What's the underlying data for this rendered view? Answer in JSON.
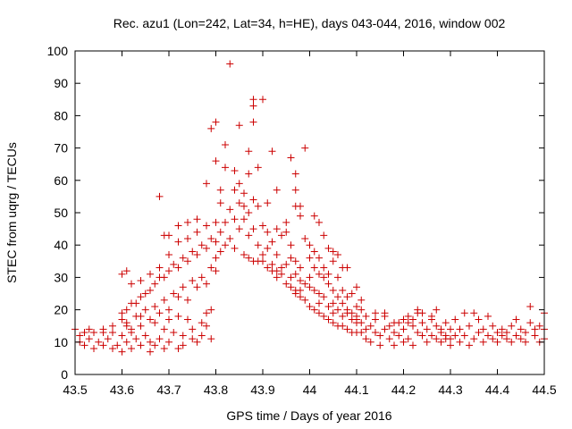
{
  "chart_data": {
    "type": "scatter",
    "title": "Rec. azu1 (Lon=242, Lat=34, h=HE), days 043-044, 2016, window 002",
    "xlabel": "GPS time / Days of year 2016",
    "ylabel": "STEC from uqrg / TECUs",
    "xlim": [
      43.5,
      44.5
    ],
    "ylim": [
      0,
      100
    ],
    "xticks": [
      "43.5",
      "43.6",
      "43.7",
      "43.8",
      "43.9",
      "44",
      "44.1",
      "44.2",
      "44.3",
      "44.4",
      "44.5"
    ],
    "yticks": [
      "0",
      "10",
      "20",
      "30",
      "40",
      "50",
      "60",
      "70",
      "80",
      "90",
      "100"
    ],
    "grid": false,
    "legend": "none",
    "marker": "plus",
    "color": "#cc0000",
    "points": [
      [
        43.5,
        14
      ],
      [
        43.51,
        12
      ],
      [
        43.51,
        10
      ],
      [
        43.52,
        9
      ],
      [
        43.52,
        13
      ],
      [
        43.53,
        11
      ],
      [
        43.54,
        8
      ],
      [
        43.54,
        13
      ],
      [
        43.55,
        10
      ],
      [
        43.56,
        9
      ],
      [
        43.56,
        14
      ],
      [
        43.57,
        11
      ],
      [
        43.58,
        8
      ],
      [
        43.58,
        13
      ],
      [
        43.59,
        9
      ],
      [
        43.6,
        12
      ],
      [
        43.6,
        7
      ],
      [
        43.61,
        15
      ],
      [
        43.61,
        10
      ],
      [
        43.62,
        8
      ],
      [
        43.62,
        13
      ],
      [
        43.63,
        11
      ],
      [
        43.64,
        9
      ],
      [
        43.64,
        15
      ],
      [
        43.65,
        12
      ],
      [
        43.66,
        10
      ],
      [
        43.66,
        7
      ],
      [
        43.67,
        16
      ],
      [
        43.67,
        9
      ],
      [
        43.68,
        11
      ],
      [
        43.69,
        8
      ],
      [
        43.69,
        14
      ],
      [
        43.7,
        10
      ],
      [
        43.7,
        17
      ],
      [
        43.71,
        13
      ],
      [
        43.72,
        8
      ],
      [
        43.72,
        18
      ],
      [
        43.73,
        12
      ],
      [
        43.73,
        9
      ],
      [
        43.74,
        17
      ],
      [
        43.75,
        11
      ],
      [
        43.75,
        14
      ],
      [
        43.76,
        10
      ],
      [
        43.77,
        16
      ],
      [
        43.77,
        12
      ],
      [
        43.78,
        19
      ],
      [
        43.78,
        15
      ],
      [
        43.79,
        20
      ],
      [
        43.79,
        11
      ],
      [
        43.53,
        14
      ],
      [
        43.56,
        13
      ],
      [
        43.58,
        15
      ],
      [
        43.6,
        17
      ],
      [
        43.61,
        16
      ],
      [
        43.62,
        14
      ],
      [
        43.63,
        18
      ],
      [
        43.64,
        18
      ],
      [
        43.65,
        20
      ],
      [
        43.66,
        17
      ],
      [
        43.67,
        21
      ],
      [
        43.68,
        19
      ],
      [
        43.69,
        23
      ],
      [
        43.7,
        20
      ],
      [
        43.71,
        25
      ],
      [
        43.72,
        24
      ],
      [
        43.73,
        27
      ],
      [
        43.74,
        23
      ],
      [
        43.75,
        29
      ],
      [
        43.76,
        27
      ],
      [
        43.77,
        30
      ],
      [
        43.78,
        28
      ],
      [
        43.79,
        33
      ],
      [
        43.8,
        32
      ],
      [
        43.6,
        19
      ],
      [
        43.61,
        20
      ],
      [
        43.62,
        22
      ],
      [
        43.63,
        22
      ],
      [
        43.64,
        24
      ],
      [
        43.65,
        25
      ],
      [
        43.66,
        26
      ],
      [
        43.67,
        28
      ],
      [
        43.68,
        30
      ],
      [
        43.69,
        30
      ],
      [
        43.7,
        32
      ],
      [
        43.71,
        34
      ],
      [
        43.72,
        33
      ],
      [
        43.73,
        36
      ],
      [
        43.74,
        35
      ],
      [
        43.75,
        38
      ],
      [
        43.76,
        37
      ],
      [
        43.77,
        40
      ],
      [
        43.78,
        39
      ],
      [
        43.79,
        42
      ],
      [
        43.8,
        41
      ],
      [
        43.6,
        31
      ],
      [
        43.61,
        32
      ],
      [
        43.62,
        28
      ],
      [
        43.64,
        29
      ],
      [
        43.66,
        31
      ],
      [
        43.68,
        33
      ],
      [
        43.7,
        37
      ],
      [
        43.72,
        41
      ],
      [
        43.74,
        42
      ],
      [
        43.76,
        44
      ],
      [
        43.78,
        46
      ],
      [
        43.8,
        47
      ],
      [
        43.68,
        55
      ],
      [
        43.69,
        43
      ],
      [
        43.7,
        43
      ],
      [
        43.72,
        46
      ],
      [
        43.74,
        47
      ],
      [
        43.76,
        48
      ],
      [
        43.78,
        59
      ],
      [
        43.79,
        76
      ],
      [
        43.8,
        78
      ],
      [
        43.8,
        66
      ],
      [
        43.81,
        57
      ],
      [
        43.81,
        53
      ],
      [
        43.82,
        71
      ],
      [
        43.82,
        64
      ],
      [
        43.83,
        96
      ],
      [
        43.84,
        63
      ],
      [
        43.84,
        57
      ],
      [
        43.85,
        77
      ],
      [
        43.85,
        59
      ],
      [
        43.86,
        56
      ],
      [
        43.86,
        52
      ],
      [
        43.87,
        69
      ],
      [
        43.87,
        62
      ],
      [
        43.88,
        85
      ],
      [
        43.88,
        83
      ],
      [
        43.88,
        78
      ],
      [
        43.89,
        64
      ],
      [
        43.9,
        85
      ],
      [
        43.91,
        53
      ],
      [
        43.92,
        69
      ],
      [
        43.93,
        57
      ],
      [
        43.8,
        36
      ],
      [
        43.81,
        38
      ],
      [
        43.81,
        44
      ],
      [
        43.82,
        40
      ],
      [
        43.82,
        47
      ],
      [
        43.83,
        42
      ],
      [
        43.83,
        51
      ],
      [
        43.84,
        48
      ],
      [
        43.84,
        39
      ],
      [
        43.85,
        53
      ],
      [
        43.85,
        45
      ],
      [
        43.86,
        37
      ],
      [
        43.86,
        48
      ],
      [
        43.87,
        50
      ],
      [
        43.87,
        43
      ],
      [
        43.88,
        54
      ],
      [
        43.88,
        45
      ],
      [
        43.89,
        40
      ],
      [
        43.89,
        52
      ],
      [
        43.9,
        46
      ],
      [
        43.9,
        35
      ],
      [
        43.91,
        44
      ],
      [
        43.91,
        39
      ],
      [
        43.92,
        41
      ],
      [
        43.92,
        34
      ],
      [
        43.93,
        45
      ],
      [
        43.93,
        37
      ],
      [
        43.87,
        36
      ],
      [
        43.88,
        35
      ],
      [
        43.89,
        35
      ],
      [
        43.9,
        37
      ],
      [
        43.91,
        33
      ],
      [
        43.92,
        32
      ],
      [
        43.93,
        30
      ],
      [
        43.94,
        31
      ],
      [
        43.95,
        28
      ],
      [
        43.96,
        27
      ],
      [
        43.97,
        26
      ],
      [
        43.98,
        24
      ],
      [
        43.99,
        23
      ],
      [
        44.0,
        21
      ],
      [
        44.01,
        20
      ],
      [
        44.02,
        19
      ],
      [
        44.03,
        18
      ],
      [
        44.04,
        17
      ],
      [
        44.05,
        16
      ],
      [
        44.06,
        15
      ],
      [
        44.07,
        15
      ],
      [
        44.08,
        14
      ],
      [
        44.09,
        13
      ],
      [
        44.1,
        13
      ],
      [
        43.93,
        32
      ],
      [
        43.94,
        33
      ],
      [
        43.95,
        34
      ],
      [
        43.96,
        36
      ],
      [
        43.96,
        30
      ],
      [
        43.97,
        31
      ],
      [
        43.97,
        25
      ],
      [
        43.98,
        29
      ],
      [
        43.98,
        26
      ],
      [
        43.99,
        28
      ],
      [
        44.0,
        27
      ],
      [
        44.0,
        30
      ],
      [
        44.01,
        26
      ],
      [
        44.02,
        25
      ],
      [
        44.02,
        22
      ],
      [
        44.03,
        24
      ],
      [
        44.04,
        21
      ],
      [
        44.05,
        22
      ],
      [
        44.05,
        19
      ],
      [
        44.06,
        20
      ],
      [
        44.07,
        18
      ],
      [
        44.08,
        19
      ],
      [
        44.09,
        17
      ],
      [
        44.1,
        16
      ],
      [
        44.1,
        18
      ],
      [
        43.94,
        43
      ],
      [
        43.95,
        44
      ],
      [
        43.95,
        47
      ],
      [
        43.96,
        40
      ],
      [
        43.96,
        67
      ],
      [
        43.97,
        52
      ],
      [
        43.97,
        57
      ],
      [
        43.98,
        52
      ],
      [
        43.98,
        49
      ],
      [
        43.99,
        70
      ],
      [
        43.99,
        42
      ],
      [
        44.0,
        40
      ],
      [
        44.01,
        49
      ],
      [
        44.01,
        38
      ],
      [
        44.02,
        47
      ],
      [
        44.02,
        36
      ],
      [
        44.03,
        43
      ],
      [
        44.03,
        33
      ],
      [
        44.04,
        39
      ],
      [
        44.04,
        31
      ],
      [
        44.05,
        38
      ],
      [
        44.05,
        35
      ],
      [
        44.06,
        30
      ],
      [
        44.06,
        37
      ],
      [
        44.07,
        33
      ],
      [
        44.07,
        26
      ],
      [
        44.08,
        33
      ],
      [
        44.08,
        24
      ],
      [
        44.09,
        25
      ],
      [
        44.1,
        27
      ],
      [
        44.1,
        21
      ],
      [
        44.11,
        23
      ],
      [
        44.11,
        20
      ],
      [
        43.97,
        62
      ],
      [
        43.97,
        35
      ],
      [
        43.98,
        33
      ],
      [
        44.0,
        36
      ],
      [
        44.01,
        33
      ],
      [
        44.02,
        31
      ],
      [
        44.03,
        30
      ],
      [
        44.04,
        28
      ],
      [
        44.05,
        26
      ],
      [
        44.06,
        24
      ],
      [
        44.07,
        22
      ],
      [
        44.08,
        20
      ],
      [
        44.09,
        19
      ],
      [
        44.1,
        17
      ],
      [
        44.11,
        16
      ],
      [
        44.11,
        13
      ],
      [
        44.12,
        14
      ],
      [
        44.12,
        11
      ],
      [
        44.13,
        15
      ],
      [
        44.13,
        10
      ],
      [
        44.14,
        13
      ],
      [
        44.14,
        17
      ],
      [
        44.15,
        12
      ],
      [
        44.15,
        9
      ],
      [
        44.16,
        14
      ],
      [
        44.16,
        18
      ],
      [
        44.17,
        11
      ],
      [
        44.17,
        15
      ],
      [
        44.18,
        13
      ],
      [
        44.18,
        9
      ],
      [
        44.19,
        16
      ],
      [
        44.19,
        12
      ],
      [
        44.2,
        14
      ],
      [
        44.2,
        10
      ],
      [
        44.21,
        18
      ],
      [
        44.21,
        11
      ],
      [
        44.22,
        15
      ],
      [
        44.22,
        9
      ],
      [
        44.23,
        13
      ],
      [
        44.23,
        19
      ],
      [
        44.24,
        12
      ],
      [
        44.24,
        16
      ],
      [
        44.25,
        10
      ],
      [
        44.25,
        14
      ],
      [
        44.26,
        12
      ],
      [
        44.26,
        18
      ],
      [
        44.27,
        11
      ],
      [
        44.27,
        15
      ],
      [
        44.28,
        13
      ],
      [
        44.28,
        10
      ],
      [
        44.29,
        12
      ],
      [
        44.29,
        16
      ],
      [
        44.3,
        11
      ],
      [
        44.3,
        14
      ],
      [
        44.12,
        18
      ],
      [
        44.14,
        19
      ],
      [
        44.16,
        19
      ],
      [
        44.18,
        16
      ],
      [
        44.2,
        17
      ],
      [
        44.21,
        16
      ],
      [
        44.22,
        17
      ],
      [
        44.23,
        20
      ],
      [
        44.24,
        19
      ],
      [
        44.26,
        17
      ],
      [
        44.27,
        20
      ],
      [
        44.28,
        14
      ],
      [
        44.29,
        11
      ],
      [
        44.3,
        9
      ],
      [
        44.31,
        12
      ],
      [
        44.31,
        17
      ],
      [
        44.32,
        10
      ],
      [
        44.32,
        14
      ],
      [
        44.33,
        19
      ],
      [
        44.33,
        12
      ],
      [
        44.34,
        9
      ],
      [
        44.34,
        15
      ],
      [
        44.35,
        11
      ],
      [
        44.35,
        19
      ],
      [
        44.36,
        13
      ],
      [
        44.36,
        17
      ],
      [
        44.37,
        10
      ],
      [
        44.37,
        14
      ],
      [
        44.38,
        12
      ],
      [
        44.38,
        18
      ],
      [
        44.39,
        11
      ],
      [
        44.39,
        15
      ],
      [
        44.4,
        13
      ],
      [
        44.4,
        10
      ],
      [
        44.41,
        12
      ],
      [
        44.41,
        14
      ],
      [
        44.42,
        11
      ],
      [
        44.42,
        13
      ],
      [
        44.43,
        10
      ],
      [
        44.43,
        15
      ],
      [
        44.44,
        12
      ],
      [
        44.44,
        17
      ],
      [
        44.45,
        11
      ],
      [
        44.45,
        14
      ],
      [
        44.46,
        13
      ],
      [
        44.46,
        10
      ],
      [
        44.47,
        21
      ],
      [
        44.47,
        16
      ],
      [
        44.48,
        12
      ],
      [
        44.48,
        14
      ],
      [
        44.49,
        10
      ],
      [
        44.49,
        15
      ],
      [
        44.5,
        11
      ],
      [
        44.5,
        19
      ],
      [
        44.5,
        14
      ]
    ]
  }
}
